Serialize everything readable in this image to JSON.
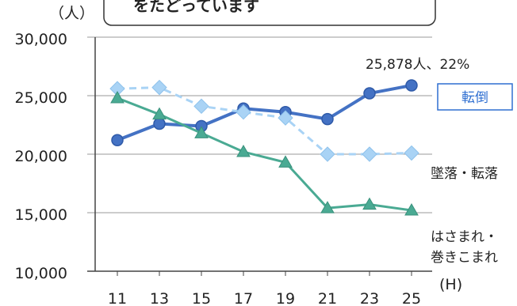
{
  "chart_data": {
    "type": "line",
    "banner_text": "をたどっています",
    "y_unit": "（人）",
    "x_unit": "(H)",
    "x": [
      "11",
      "13",
      "15",
      "17",
      "19",
      "21",
      "23",
      "25"
    ],
    "y_ticks": [
      "30,000",
      "25,000",
      "20,000",
      "15,000",
      "10,000"
    ],
    "ylim": [
      10000,
      30000
    ],
    "grid": true,
    "series": [
      {
        "name": "転倒",
        "color": "#4472c4",
        "style": "solid",
        "marker": "circle",
        "values": [
          21200,
          22600,
          22400,
          23900,
          23600,
          23000,
          25200,
          25878
        ]
      },
      {
        "name": "墜落・転落",
        "color": "#a9d3f5",
        "style": "dashed",
        "marker": "diamond",
        "values": [
          25600,
          25700,
          24100,
          23600,
          23100,
          20000,
          20000,
          20100
        ]
      },
      {
        "name_line1": "はさまれ・",
        "name_line2": "巻きこまれ",
        "color": "#4aaa93",
        "style": "solid",
        "marker": "triangle",
        "values": [
          24800,
          23400,
          21800,
          20200,
          19300,
          15400,
          15700,
          15200
        ]
      }
    ],
    "annotation": "25,878人、22%"
  }
}
